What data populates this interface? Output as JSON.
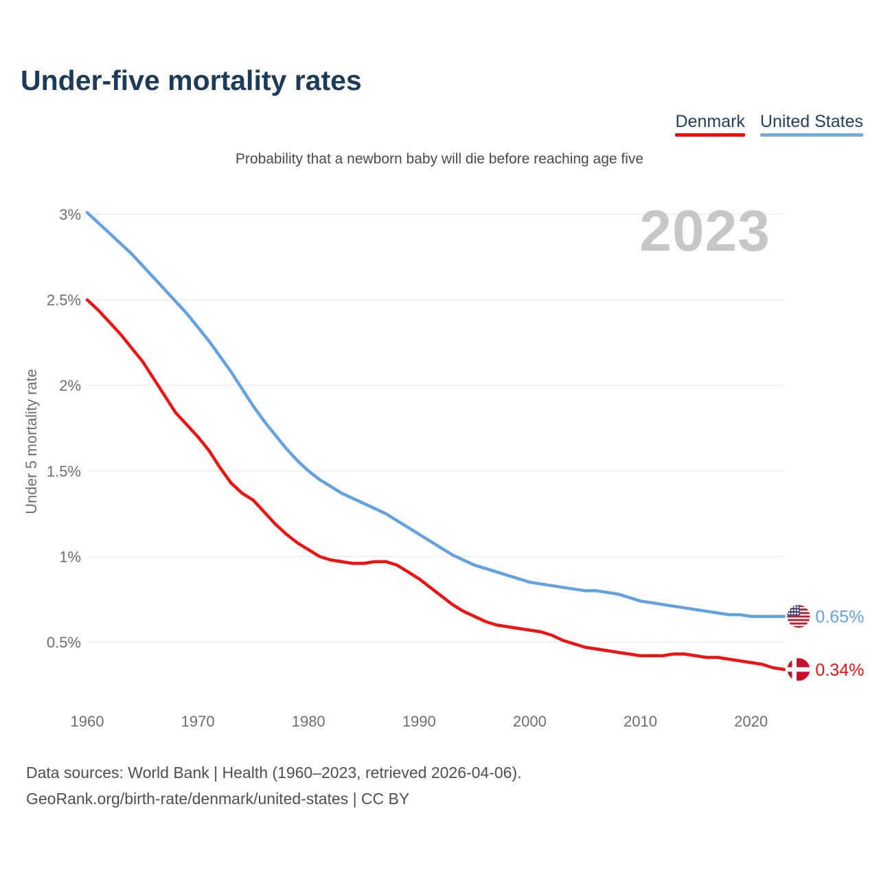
{
  "header": {
    "title": "Under-five mortality rates",
    "subtitle": "Probability that a newborn baby will die before reaching age five"
  },
  "legend": [
    {
      "label": "Denmark",
      "underline_color": "#f20b00"
    },
    {
      "label": "United States",
      "underline_color": "#76abde"
    }
  ],
  "watermark": "2023",
  "chart_data": {
    "type": "line",
    "title": "Under-five mortality rates",
    "subtitle": "Probability that a newborn baby will die before reaching age five",
    "xlabel": "",
    "ylabel": "Under 5 mortality rate",
    "x_range": [
      1960,
      2023
    ],
    "ylim": [
      0.3,
      3.05
    ],
    "grid": true,
    "legend_position": "top-right",
    "xticks": [
      1960,
      1970,
      1980,
      1990,
      2000,
      2010,
      2020
    ],
    "yticks": [
      {
        "value": 0.5,
        "label": "0.5%"
      },
      {
        "value": 1.0,
        "label": "1%"
      },
      {
        "value": 1.5,
        "label": "1.5%"
      },
      {
        "value": 2.0,
        "label": "2%"
      },
      {
        "value": 2.5,
        "label": "2.5%"
      },
      {
        "value": 3.0,
        "label": "3%"
      }
    ],
    "years": [
      1960,
      1961,
      1962,
      1963,
      1964,
      1965,
      1966,
      1967,
      1968,
      1969,
      1970,
      1971,
      1972,
      1973,
      1974,
      1975,
      1976,
      1977,
      1978,
      1979,
      1980,
      1981,
      1982,
      1983,
      1984,
      1985,
      1986,
      1987,
      1988,
      1989,
      1990,
      1991,
      1992,
      1993,
      1994,
      1995,
      1996,
      1997,
      1998,
      1999,
      2000,
      2001,
      2002,
      2003,
      2004,
      2005,
      2006,
      2007,
      2008,
      2009,
      2010,
      2011,
      2012,
      2013,
      2014,
      2015,
      2016,
      2017,
      2018,
      2019,
      2020,
      2021,
      2022,
      2023
    ],
    "series": [
      {
        "name": "Denmark",
        "color": "#ee1310",
        "flag": "denmark-flag-icon",
        "end_label": "0.34%",
        "values": [
          2.5,
          2.44,
          2.37,
          2.3,
          2.22,
          2.14,
          2.04,
          1.94,
          1.84,
          1.77,
          1.7,
          1.62,
          1.52,
          1.43,
          1.37,
          1.33,
          1.26,
          1.19,
          1.13,
          1.08,
          1.04,
          1.0,
          0.98,
          0.97,
          0.96,
          0.96,
          0.97,
          0.97,
          0.95,
          0.91,
          0.87,
          0.82,
          0.77,
          0.72,
          0.68,
          0.65,
          0.62,
          0.6,
          0.59,
          0.58,
          0.57,
          0.56,
          0.54,
          0.51,
          0.49,
          0.47,
          0.46,
          0.45,
          0.44,
          0.43,
          0.42,
          0.42,
          0.42,
          0.43,
          0.43,
          0.42,
          0.41,
          0.41,
          0.4,
          0.39,
          0.38,
          0.37,
          0.35,
          0.34
        ]
      },
      {
        "name": "United States",
        "color": "#64a1e1",
        "flag": "us-flag-icon",
        "end_label": "0.65%",
        "values": [
          3.01,
          2.95,
          2.89,
          2.83,
          2.77,
          2.7,
          2.63,
          2.56,
          2.49,
          2.42,
          2.34,
          2.26,
          2.17,
          2.08,
          1.98,
          1.88,
          1.79,
          1.71,
          1.63,
          1.56,
          1.5,
          1.45,
          1.41,
          1.37,
          1.34,
          1.31,
          1.28,
          1.25,
          1.21,
          1.17,
          1.13,
          1.09,
          1.05,
          1.01,
          0.98,
          0.95,
          0.93,
          0.91,
          0.89,
          0.87,
          0.85,
          0.84,
          0.83,
          0.82,
          0.81,
          0.8,
          0.8,
          0.79,
          0.78,
          0.76,
          0.74,
          0.73,
          0.72,
          0.71,
          0.7,
          0.69,
          0.68,
          0.67,
          0.66,
          0.66,
          0.65,
          0.65,
          0.65,
          0.65
        ]
      }
    ]
  },
  "footer": {
    "line1": "Data sources: World Bank | Health (1960–2023, retrieved 2026-04-06).",
    "line2": "GeoRank.org/birth-rate/denmark/united-states | CC BY"
  }
}
